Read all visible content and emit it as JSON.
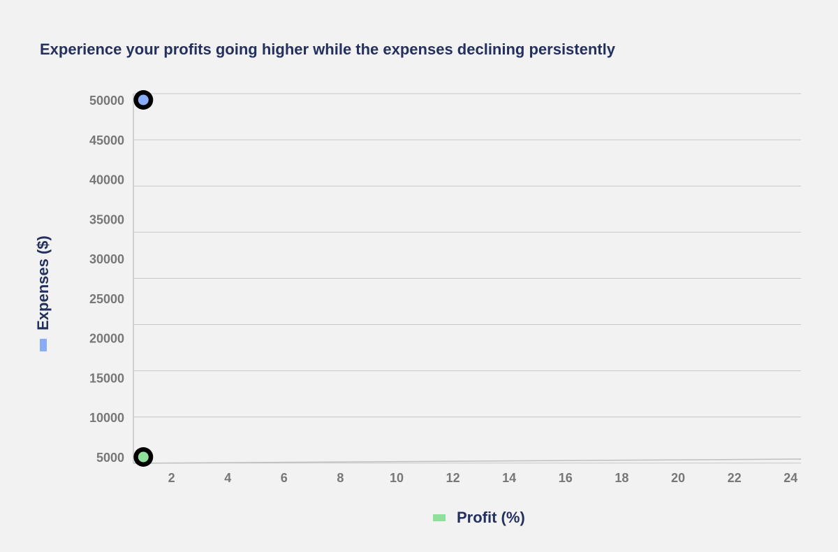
{
  "chart_data": {
    "type": "scatter",
    "title": "Experience your profits going higher while the expenses declining persistently",
    "xlabel": "Profit (%)",
    "ylabel": "Expenses ($)",
    "x_ticks": [
      2,
      4,
      6,
      8,
      10,
      12,
      14,
      16,
      18,
      20,
      22,
      24
    ],
    "y_ticks": [
      5000,
      10000,
      15000,
      20000,
      25000,
      30000,
      35000,
      40000,
      45000,
      50000
    ],
    "xlim": [
      0.6,
      24.5
    ],
    "ylim": [
      4200,
      50800
    ],
    "grid": true,
    "series": [
      {
        "name": "Expenses ($)",
        "color": "#8aabf5",
        "points": [
          {
            "x": 1,
            "y": 50000
          }
        ]
      },
      {
        "name": "Profit (%)",
        "color": "#8fe09a",
        "points": [
          {
            "x": 1,
            "y": 5000
          }
        ]
      }
    ]
  }
}
